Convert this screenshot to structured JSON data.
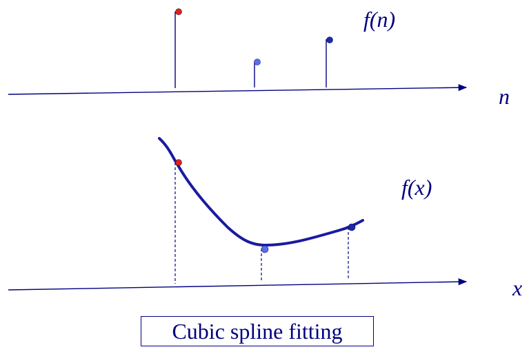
{
  "diagram": {
    "top_label_function": "f(n)",
    "top_axis_label": "n",
    "bottom_label_function": "f(x)",
    "bottom_axis_label": "x",
    "caption": "Cubic spline fitting"
  },
  "colors": {
    "axis": "#000080",
    "curve": "#1a1aa0",
    "dot_red": "#e02020",
    "dot_light_blue": "#5a6ee6",
    "dot_dark_blue": "#1a2aa8"
  },
  "samples": [
    {
      "n": 1,
      "value": 3,
      "color": "dot_red"
    },
    {
      "n": 2,
      "value": 1,
      "color": "dot_light_blue"
    },
    {
      "n": 3,
      "value": 2,
      "color": "dot_dark_blue"
    }
  ]
}
